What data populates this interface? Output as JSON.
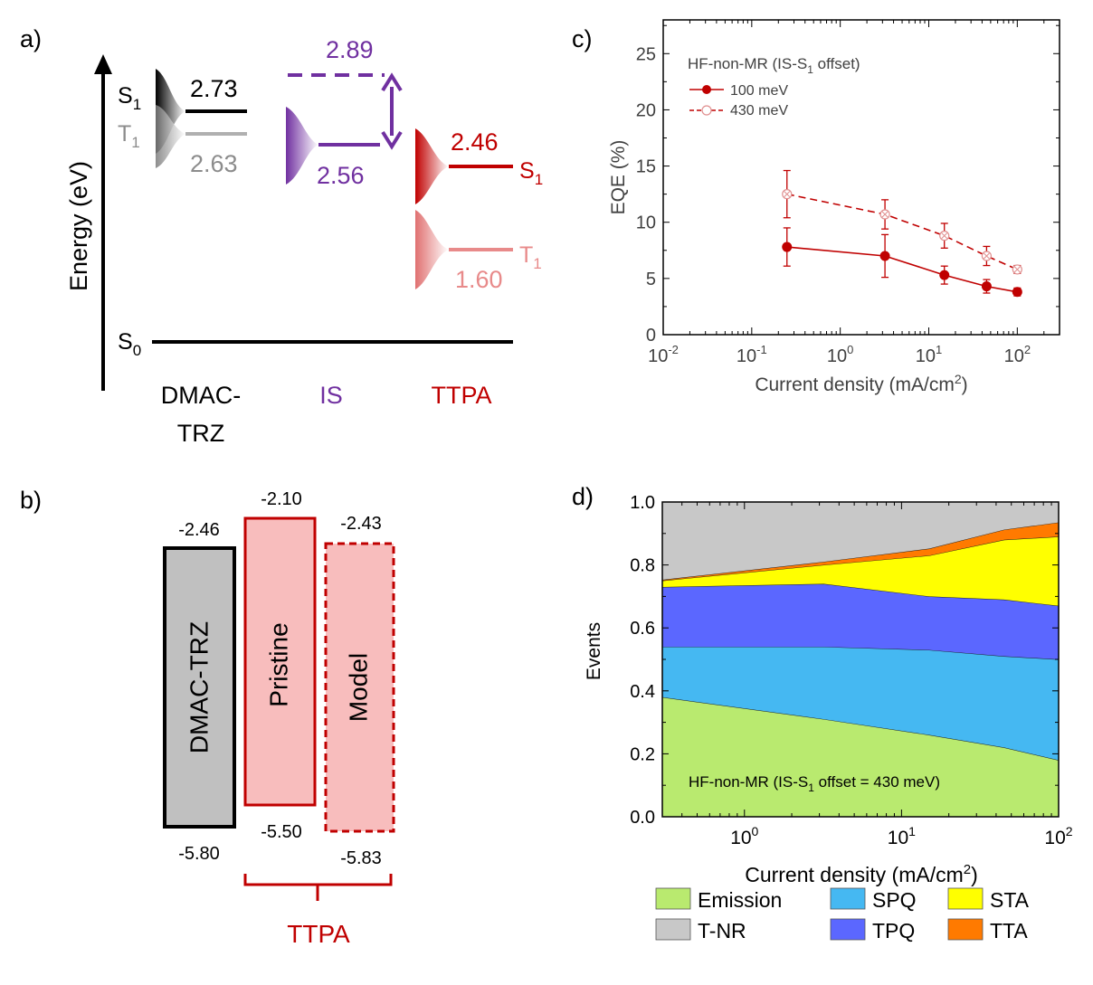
{
  "panel_labels": {
    "a": "a)",
    "b": "b)",
    "c": "c)",
    "d": "d)"
  },
  "colors": {
    "dmac": "#000000",
    "dmac_t1": "#9a9a9a",
    "is": "#7030a0",
    "ttpa": "#c00000",
    "ttpa_t1": "#e88a8a",
    "pristine_fill": "#f8bdbd",
    "dmac_fill": "#c0c0c0",
    "emission": "#b9ea6f",
    "spq": "#45b8f2",
    "tpq": "#5b67ff",
    "sta": "#ffff00",
    "tta": "#ff7a00",
    "tnr": "#c8c8c8"
  },
  "panel_a": {
    "ylabel": "Energy (eV)",
    "dmac": {
      "s1": "2.73",
      "t1": "2.63",
      "s1_sym": "S",
      "s1_sub": "1",
      "t1_sym": "T",
      "t1_sub": "1",
      "name_line1": "DMAC-",
      "name_line2": "TRZ"
    },
    "is": {
      "s1_dash": "2.89",
      "s1": "2.56",
      "name": "IS"
    },
    "ttpa": {
      "s1": "2.46",
      "t1": "1.60",
      "s1_sym": "S",
      "s1_sub": "1",
      "t1_sym": "T",
      "t1_sub": "1",
      "name": "TTPA"
    },
    "s0_sym": "S",
    "s0_sub": "0"
  },
  "panel_b": {
    "dmac": {
      "name": "DMAC-TRZ",
      "lumo": "-2.46",
      "homo": "-5.80"
    },
    "pristine": {
      "name": "Pristine",
      "lumo": "-2.10",
      "homo": "-5.50"
    },
    "model": {
      "name": "Model",
      "lumo": "-2.43",
      "homo": "-5.83"
    },
    "group_label": "TTPA"
  },
  "chart_data": [
    {
      "panel": "c",
      "type": "line",
      "xlabel_pre": "Current density (mA/cm",
      "xlabel_sup": "2",
      "xlabel_post": ")",
      "ylabel": "EQE (%)",
      "xscale": "log",
      "xlim": [
        0.01,
        300
      ],
      "ylim": [
        0,
        28
      ],
      "x_ticks": [
        "10",
        "10",
        "10",
        "10",
        "10"
      ],
      "x_tick_exps": [
        "-2",
        "-1",
        "0",
        "1",
        "2"
      ],
      "y_ticks": [
        "0",
        "5",
        "10",
        "15",
        "20",
        "25"
      ],
      "legend_title_pre": "HF-non-MR (IS-S",
      "legend_title_sub": "1",
      "legend_title_post": " offset)",
      "legend_position": "top-left",
      "series": [
        {
          "name": "100 meV",
          "style": "solid-filled",
          "x": [
            0.25,
            3.2,
            15,
            45,
            100
          ],
          "y": [
            7.8,
            7.0,
            5.3,
            4.3,
            3.8
          ],
          "err": [
            1.7,
            1.9,
            0.8,
            0.6,
            0.35
          ]
        },
        {
          "name": "430 meV",
          "style": "dashed-open",
          "x": [
            0.25,
            3.2,
            15,
            45,
            100
          ],
          "y": [
            12.5,
            10.7,
            8.8,
            7.0,
            5.8
          ],
          "err": [
            2.1,
            1.3,
            1.1,
            0.85,
            0.35
          ]
        }
      ]
    },
    {
      "panel": "d",
      "type": "area",
      "xlabel_pre": "Current density (mA/cm",
      "xlabel_sup": "2",
      "xlabel_post": ")",
      "ylabel": "Events",
      "xscale": "log",
      "xlim": [
        0.3,
        100
      ],
      "ylim": [
        0,
        1
      ],
      "x_ticks": [
        "10",
        "10",
        "10"
      ],
      "x_tick_exps": [
        "0",
        "1",
        "2"
      ],
      "y_ticks": [
        "0.0",
        "0.2",
        "0.4",
        "0.6",
        "0.8",
        "1.0"
      ],
      "x": [
        0.3,
        3.2,
        15,
        45,
        100
      ],
      "series": [
        {
          "name": "Emission",
          "values": [
            0.38,
            0.31,
            0.26,
            0.22,
            0.18
          ]
        },
        {
          "name": "SPQ",
          "values": [
            0.16,
            0.23,
            0.27,
            0.29,
            0.32
          ]
        },
        {
          "name": "TPQ",
          "values": [
            0.19,
            0.2,
            0.17,
            0.18,
            0.17
          ]
        },
        {
          "name": "STA",
          "values": [
            0.02,
            0.06,
            0.13,
            0.19,
            0.22
          ]
        },
        {
          "name": "TTA",
          "values": [
            0.003,
            0.01,
            0.022,
            0.032,
            0.045
          ]
        },
        {
          "name": "T-NR",
          "values": [
            0.247,
            0.18,
            0.138,
            0.088,
            0.065
          ]
        }
      ],
      "annotation_pre": "HF-non-MR (IS-S",
      "annotation_sub": "1",
      "annotation_post": " offset = 430 meV)",
      "legend_position": "bottom"
    }
  ]
}
